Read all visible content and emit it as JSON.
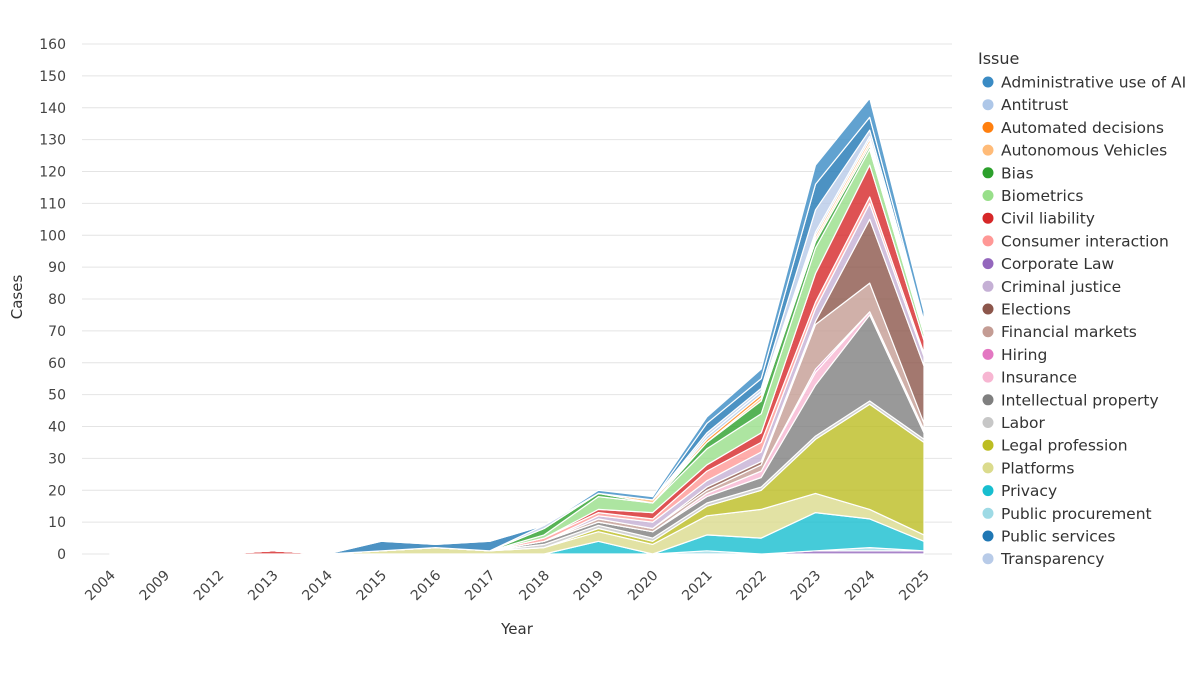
{
  "chart_data": {
    "type": "area",
    "stacked": true,
    "xlabel": "Year",
    "ylabel": "Cases",
    "ylim": [
      0,
      160
    ],
    "yticks": [
      0,
      10,
      20,
      30,
      40,
      50,
      60,
      70,
      80,
      90,
      100,
      110,
      120,
      130,
      140,
      150,
      160
    ],
    "grid": true,
    "legend_title": "Issue",
    "legend_position": "right",
    "x": [
      "2004",
      "2009",
      "2012",
      "2013",
      "2014",
      "2015",
      "2016",
      "2017",
      "2018",
      "2019",
      "2020",
      "2021",
      "2022",
      "2023",
      "2024",
      "2025"
    ],
    "series": [
      {
        "name": "Corporate Law",
        "color": "#9467bd",
        "values": [
          0,
          0,
          0,
          0,
          0,
          0,
          0,
          0,
          0,
          0,
          0,
          0,
          0,
          1,
          1,
          1
        ]
      },
      {
        "name": "Public procurement",
        "color": "#9edae5",
        "values": [
          0,
          0,
          0,
          0,
          0,
          0,
          0,
          0,
          0,
          0,
          0,
          1,
          0,
          0,
          1,
          0
        ]
      },
      {
        "name": "Privacy",
        "color": "#17becf",
        "values": [
          0,
          0,
          0,
          0,
          0,
          0,
          0,
          0,
          0,
          4,
          0,
          5,
          5,
          12,
          9,
          3
        ]
      },
      {
        "name": "Platforms",
        "color": "#dbdb8d",
        "values": [
          0,
          0,
          0,
          0,
          0,
          1,
          2,
          1,
          2,
          3,
          3,
          6,
          9,
          6,
          3,
          2
        ]
      },
      {
        "name": "Legal profession",
        "color": "#bcbd22",
        "values": [
          0,
          0,
          0,
          0,
          0,
          0,
          0,
          0,
          0,
          1,
          1,
          3,
          6,
          17,
          33,
          29
        ]
      },
      {
        "name": "Labor",
        "color": "#c7c7c7",
        "values": [
          0,
          0,
          0,
          0,
          0,
          0,
          0,
          0,
          1,
          1,
          1,
          1,
          1,
          1,
          1,
          1
        ]
      },
      {
        "name": "Intellectual property",
        "color": "#7f7f7f",
        "values": [
          0,
          0,
          0,
          0,
          0,
          0,
          0,
          0,
          1,
          1,
          2,
          2,
          3,
          16,
          27,
          2
        ]
      },
      {
        "name": "Insurance",
        "color": "#f7b6d2",
        "values": [
          0,
          0,
          0,
          0,
          0,
          0,
          0,
          0,
          0,
          0,
          0,
          1,
          2,
          4,
          1,
          1
        ]
      },
      {
        "name": "Hiring",
        "color": "#e377c2",
        "values": [
          0,
          0,
          0,
          0,
          0,
          0,
          0,
          0,
          0,
          0,
          0,
          0,
          0,
          1,
          0,
          0
        ]
      },
      {
        "name": "Financial markets",
        "color": "#c49c94",
        "values": [
          0,
          0,
          0,
          0,
          0,
          0,
          0,
          0,
          0,
          1,
          1,
          1,
          2,
          14,
          9,
          2
        ]
      },
      {
        "name": "Elections",
        "color": "#8c564b",
        "values": [
          0,
          0,
          0,
          0,
          0,
          0,
          0,
          0,
          0,
          0,
          0,
          1,
          1,
          1,
          20,
          18
        ]
      },
      {
        "name": "Criminal justice",
        "color": "#c5b0d5",
        "values": [
          0,
          0,
          0,
          0,
          0,
          0,
          0,
          0,
          0,
          1,
          2,
          2,
          3,
          4,
          5,
          3
        ]
      },
      {
        "name": "Consumer interaction",
        "color": "#ff9896",
        "values": [
          0,
          0,
          0,
          0,
          0,
          0,
          0,
          0,
          1,
          1,
          1,
          3,
          3,
          2,
          2,
          1
        ]
      },
      {
        "name": "Civil liability",
        "color": "#d62728",
        "values": [
          0,
          0,
          0,
          1,
          0,
          0,
          0,
          0,
          0,
          1,
          2,
          2,
          3,
          9,
          10,
          4
        ]
      },
      {
        "name": "Biometrics",
        "color": "#98df8a",
        "values": [
          0,
          0,
          0,
          0,
          0,
          0,
          0,
          0,
          1,
          4,
          3,
          5,
          6,
          8,
          5,
          2
        ]
      },
      {
        "name": "Bias",
        "color": "#2ca02c",
        "values": [
          0,
          0,
          0,
          0,
          0,
          0,
          0,
          0,
          2,
          1,
          0,
          2,
          4,
          2,
          1,
          1
        ]
      },
      {
        "name": "Autonomous Vehicles",
        "color": "#ffbb78",
        "values": [
          0,
          0,
          0,
          0,
          0,
          0,
          0,
          0,
          0,
          0,
          1,
          0,
          1,
          1,
          1,
          1
        ]
      },
      {
        "name": "Automated decisions",
        "color": "#ff7f0e",
        "values": [
          0,
          0,
          0,
          0,
          0,
          0,
          0,
          0,
          0,
          0,
          0,
          1,
          1,
          1,
          1,
          1
        ]
      },
      {
        "name": "Antitrust",
        "color": "#aec7e8",
        "values": [
          0,
          0,
          0,
          0,
          0,
          0,
          0,
          0,
          0,
          0,
          0,
          1,
          1,
          1,
          1,
          1
        ]
      },
      {
        "name": "Transparency",
        "color": "#b8cbe8",
        "values": [
          0,
          0,
          0,
          0,
          0,
          0,
          0,
          0,
          1,
          0,
          0,
          1,
          1,
          7,
          2,
          0
        ]
      },
      {
        "name": "Public services",
        "color": "#1f77b4",
        "values": [
          0,
          0,
          0,
          0,
          0,
          3,
          1,
          3,
          0,
          0,
          0,
          3,
          3,
          8,
          4,
          0
        ]
      },
      {
        "name": "Administrative use of AI",
        "color": "#3a8bc4",
        "values": [
          0,
          0,
          0,
          0,
          0,
          0,
          0,
          0,
          0,
          1,
          1,
          2,
          3,
          6,
          6,
          3
        ]
      }
    ],
    "legend_order": [
      "Administrative use of AI",
      "Antitrust",
      "Automated decisions",
      "Autonomous Vehicles",
      "Bias",
      "Biometrics",
      "Civil liability",
      "Consumer interaction",
      "Corporate Law",
      "Criminal justice",
      "Elections",
      "Financial markets",
      "Hiring",
      "Insurance",
      "Intellectual property",
      "Labor",
      "Legal profession",
      "Platforms",
      "Privacy",
      "Public procurement",
      "Public services",
      "Transparency"
    ]
  }
}
